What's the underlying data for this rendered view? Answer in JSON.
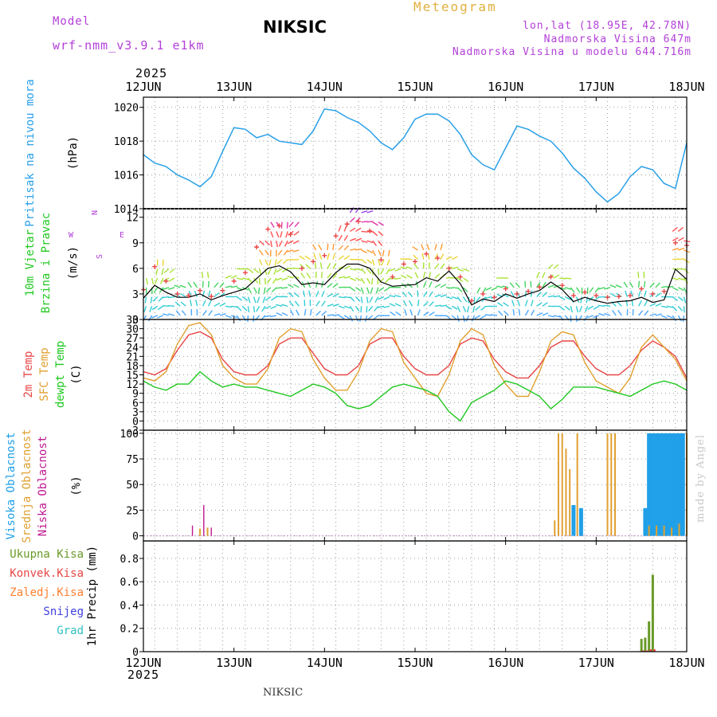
{
  "header": {
    "model_label": "Model",
    "model_run": "wrf-nmm_v3.9.1  e1km",
    "station": "NIKSIC",
    "title": "Meteogram",
    "location": "lon,lat (18.95E, 42.78N)",
    "elevation": "Nadmorska Visina 647m",
    "model_elevation": "Nadmorska Visina u modelu 644.716m",
    "year": "2025"
  },
  "footer": {
    "station": "NIKSIC",
    "credit": "made by Angel"
  },
  "colors": {
    "pressure": "#2aa0e8",
    "temp2m": "#e84545",
    "sfc_temp": "#e0a030",
    "dewpt": "#20c820",
    "high_cloud": "#20a0e8",
    "mid_cloud": "#e0a030",
    "low_cloud": "#c01890",
    "total_precip": "#6a9a28",
    "conv_precip": "#e84545",
    "frozen_precip": "#ff8030",
    "snow": "#4040e0",
    "graupel": "#30c0c0",
    "wind_speed": "#000000",
    "wind_gust": "#e84545",
    "wind_legend": "#b23fd8"
  },
  "chart_data": [
    {
      "type": "line",
      "panel": "pressure",
      "ylabel": [
        "Pritisak na nivou mora",
        "(hPa)"
      ],
      "ylim": [
        1014,
        1020.6
      ],
      "yticks": [
        1014,
        1016,
        1018,
        1020
      ],
      "x_start": "2025-06-12",
      "x_end": "2025-06-18",
      "x_ticks": [
        "12JUN",
        "13JUN",
        "14JUN",
        "15JUN",
        "16JUN",
        "17JUN",
        "18JUN"
      ],
      "grid": true,
      "series": [
        {
          "name": "",
          "x": [
            "2025-06-12T00",
            "2025-06-12T03",
            "2025-06-12T06",
            "2025-06-12T09",
            "2025-06-12T12",
            "2025-06-12T15",
            "2025-06-12T18",
            "2025-06-12T21",
            "2025-06-13T00",
            "2025-06-13T03",
            "2025-06-13T06",
            "2025-06-13T09",
            "2025-06-13T12",
            "2025-06-13T15",
            "2025-06-13T18",
            "2025-06-13T21",
            "2025-06-14T00",
            "2025-06-14T03",
            "2025-06-14T06",
            "2025-06-14T09",
            "2025-06-14T12",
            "2025-06-14T15",
            "2025-06-14T18",
            "2025-06-14T21",
            "2025-06-15T00",
            "2025-06-15T03",
            "2025-06-15T06",
            "2025-06-15T09",
            "2025-06-15T12",
            "2025-06-15T15",
            "2025-06-15T18",
            "2025-06-15T21",
            "2025-06-16T00",
            "2025-06-16T03",
            "2025-06-16T06",
            "2025-06-16T09",
            "2025-06-16T12",
            "2025-06-16T15",
            "2025-06-16T18",
            "2025-06-16T21",
            "2025-06-17T00",
            "2025-06-17T03",
            "2025-06-17T06",
            "2025-06-17T09",
            "2025-06-17T12",
            "2025-06-17T15",
            "2025-06-17T18",
            "2025-06-17T21",
            "2025-06-18T00"
          ],
          "values": [
            1017.2,
            1016.7,
            1016.5,
            1016.0,
            1015.7,
            1015.3,
            1015.9,
            1017.4,
            1018.8,
            1018.7,
            1018.2,
            1018.4,
            1018.0,
            1017.9,
            1017.8,
            1018.6,
            1019.9,
            1019.8,
            1019.4,
            1019.1,
            1018.6,
            1017.9,
            1017.5,
            1018.2,
            1019.3,
            1019.6,
            1019.6,
            1019.2,
            1018.4,
            1017.2,
            1016.6,
            1016.3,
            1017.6,
            1018.9,
            1018.7,
            1018.3,
            1018.0,
            1017.3,
            1016.4,
            1015.8,
            1015.0,
            1014.4,
            1014.9,
            1015.9,
            1016.5,
            1016.3,
            1015.5,
            1015.2,
            1017.9
          ]
        }
      ]
    },
    {
      "type": "line",
      "panel": "wind",
      "ylabel": [
        "10m Vjetar",
        "Brzina i Pravac",
        "(m/s)"
      ],
      "direction_legend": {
        "n": "N",
        "e": "E",
        "w": "W",
        "s": "S"
      },
      "ylim": [
        0,
        13
      ],
      "yticks": [
        0,
        3,
        6,
        9,
        12
      ],
      "x_start": "2025-06-12",
      "x_end": "2025-06-18",
      "grid": true,
      "series": [
        {
          "name": "",
          "x": [
            "2025-06-12T00",
            "2025-06-12T03",
            "2025-06-12T06",
            "2025-06-12T09",
            "2025-06-12T12",
            "2025-06-12T15",
            "2025-06-12T18",
            "2025-06-12T21",
            "2025-06-13T00",
            "2025-06-13T03",
            "2025-06-13T06",
            "2025-06-13T09",
            "2025-06-13T12",
            "2025-06-13T15",
            "2025-06-13T18",
            "2025-06-13T21",
            "2025-06-14T00",
            "2025-06-14T03",
            "2025-06-14T06",
            "2025-06-14T09",
            "2025-06-14T12",
            "2025-06-14T15",
            "2025-06-14T18",
            "2025-06-14T21",
            "2025-06-15T00",
            "2025-06-15T03",
            "2025-06-15T06",
            "2025-06-15T09",
            "2025-06-15T12",
            "2025-06-15T15",
            "2025-06-15T18",
            "2025-06-15T21",
            "2025-06-16T00",
            "2025-06-16T03",
            "2025-06-16T06",
            "2025-06-16T09",
            "2025-06-16T12",
            "2025-06-16T15",
            "2025-06-16T18",
            "2025-06-16T21",
            "2025-06-17T00",
            "2025-06-17T03",
            "2025-06-17T06",
            "2025-06-17T09",
            "2025-06-17T12",
            "2025-06-17T15",
            "2025-06-17T18",
            "2025-06-17T21",
            "2025-06-18T00"
          ],
          "values": [
            2.5,
            4.0,
            3.2,
            2.6,
            2.6,
            3.0,
            2.3,
            2.8,
            3.2,
            3.6,
            4.8,
            6.0,
            6.3,
            5.6,
            4.1,
            4.3,
            4.1,
            5.5,
            6.5,
            6.5,
            6.0,
            4.4,
            3.9,
            4.0,
            4.1,
            4.9,
            4.5,
            5.7,
            4.2,
            1.7,
            2.4,
            2.1,
            3.0,
            2.5,
            3.0,
            3.4,
            4.4,
            3.5,
            2.1,
            2.6,
            2.2,
            1.9,
            2.1,
            2.2,
            2.6,
            2.0,
            2.3,
            5.9,
            4.7
          ]
        },
        {
          "name": "",
          "x": [
            "2025-06-12T00",
            "2025-06-12T03",
            "2025-06-12T06",
            "2025-06-12T09",
            "2025-06-12T12",
            "2025-06-12T15",
            "2025-06-12T18",
            "2025-06-12T21",
            "2025-06-13T00",
            "2025-06-13T03",
            "2025-06-13T06",
            "2025-06-13T09",
            "2025-06-13T12",
            "2025-06-13T15",
            "2025-06-13T18",
            "2025-06-13T21",
            "2025-06-14T00",
            "2025-06-14T03",
            "2025-06-14T06",
            "2025-06-14T09",
            "2025-06-14T12",
            "2025-06-14T15",
            "2025-06-14T18",
            "2025-06-14T21",
            "2025-06-15T00",
            "2025-06-15T03",
            "2025-06-15T06",
            "2025-06-15T09",
            "2025-06-15T12",
            "2025-06-15T15",
            "2025-06-15T18",
            "2025-06-15T21",
            "2025-06-16T00",
            "2025-06-16T03",
            "2025-06-16T06",
            "2025-06-16T09",
            "2025-06-16T12",
            "2025-06-16T15",
            "2025-06-16T18",
            "2025-06-16T21",
            "2025-06-17T00",
            "2025-06-17T03",
            "2025-06-17T06",
            "2025-06-17T09",
            "2025-06-17T12",
            "2025-06-17T15",
            "2025-06-17T18",
            "2025-06-17T21",
            "2025-06-18T00"
          ],
          "values": [
            3.5,
            6.2,
            4.5,
            3.0,
            2.8,
            3.4,
            2.7,
            3.4,
            4.5,
            5.5,
            8.5,
            10.6,
            11.0,
            10.0,
            6.0,
            6.8,
            7.5,
            9.8,
            11.2,
            11.5,
            10.4,
            7.0,
            5.0,
            6.5,
            6.8,
            7.7,
            7.2,
            6.0,
            5.0,
            2.2,
            3.0,
            2.6,
            3.6,
            3.0,
            3.3,
            3.8,
            5.0,
            4.0,
            2.8,
            3.2,
            2.8,
            2.6,
            2.7,
            2.8,
            3.6,
            3.0,
            3.3,
            9.0,
            8.7
          ]
        }
      ]
    },
    {
      "type": "line",
      "panel": "temperature",
      "ylabel": [
        "2m Temp",
        "SFC Temp",
        "dewpt Temp",
        "(C)"
      ],
      "ylim": [
        -3,
        33
      ],
      "yticks": [
        -3,
        0,
        3,
        6,
        9,
        12,
        15,
        18,
        21,
        24,
        27,
        30,
        33
      ],
      "x_start": "2025-06-12",
      "x_end": "2025-06-18",
      "grid": true,
      "series": [
        {
          "name": "2m Temp",
          "x": [
            "2025-06-12T00",
            "2025-06-12T03",
            "2025-06-12T06",
            "2025-06-12T09",
            "2025-06-12T12",
            "2025-06-12T15",
            "2025-06-12T18",
            "2025-06-12T21",
            "2025-06-13T00",
            "2025-06-13T03",
            "2025-06-13T06",
            "2025-06-13T09",
            "2025-06-13T12",
            "2025-06-13T15",
            "2025-06-13T18",
            "2025-06-13T21",
            "2025-06-14T00",
            "2025-06-14T03",
            "2025-06-14T06",
            "2025-06-14T09",
            "2025-06-14T12",
            "2025-06-14T15",
            "2025-06-14T18",
            "2025-06-14T21",
            "2025-06-15T00",
            "2025-06-15T03",
            "2025-06-15T06",
            "2025-06-15T09",
            "2025-06-15T12",
            "2025-06-15T15",
            "2025-06-15T18",
            "2025-06-15T21",
            "2025-06-16T00",
            "2025-06-16T03",
            "2025-06-16T06",
            "2025-06-16T09",
            "2025-06-16T12",
            "2025-06-16T15",
            "2025-06-16T18",
            "2025-06-16T21",
            "2025-06-17T00",
            "2025-06-17T03",
            "2025-06-17T06",
            "2025-06-17T09",
            "2025-06-17T12",
            "2025-06-17T15",
            "2025-06-17T18",
            "2025-06-17T21",
            "2025-06-18T00"
          ],
          "values": [
            16,
            15,
            17,
            23,
            28,
            29,
            27,
            20,
            16,
            15,
            15,
            18,
            25,
            27,
            27,
            22,
            17,
            15,
            15,
            18,
            25,
            27,
            27,
            21,
            17,
            15,
            15,
            18,
            25,
            27,
            26,
            20,
            16,
            14,
            14,
            18,
            24,
            26,
            26,
            21,
            17,
            15,
            15,
            18,
            23,
            26,
            24,
            21,
            14
          ]
        },
        {
          "name": "SFC Temp",
          "x": [
            "2025-06-12T00",
            "2025-06-12T03",
            "2025-06-12T06",
            "2025-06-12T09",
            "2025-06-12T12",
            "2025-06-12T15",
            "2025-06-12T18",
            "2025-06-12T21",
            "2025-06-13T00",
            "2025-06-13T03",
            "2025-06-13T06",
            "2025-06-13T09",
            "2025-06-13T12",
            "2025-06-13T15",
            "2025-06-13T18",
            "2025-06-13T21",
            "2025-06-14T00",
            "2025-06-14T03",
            "2025-06-14T06",
            "2025-06-14T09",
            "2025-06-14T12",
            "2025-06-14T15",
            "2025-06-14T18",
            "2025-06-14T21",
            "2025-06-15T00",
            "2025-06-15T03",
            "2025-06-15T06",
            "2025-06-15T09",
            "2025-06-15T12",
            "2025-06-15T15",
            "2025-06-15T18",
            "2025-06-15T21",
            "2025-06-16T00",
            "2025-06-16T03",
            "2025-06-16T06",
            "2025-06-16T09",
            "2025-06-16T12",
            "2025-06-16T15",
            "2025-06-16T18",
            "2025-06-16T21",
            "2025-06-17T00",
            "2025-06-17T03",
            "2025-06-17T06",
            "2025-06-17T09",
            "2025-06-17T12",
            "2025-06-17T15",
            "2025-06-17T18",
            "2025-06-17T21",
            "2025-06-18T00"
          ],
          "values": [
            14,
            13,
            16,
            25,
            31,
            32,
            28,
            18,
            14,
            12,
            12,
            17,
            27,
            30,
            29,
            20,
            14,
            10,
            10,
            16,
            26,
            30,
            29,
            19,
            14,
            9,
            8,
            15,
            26,
            30,
            28,
            18,
            12,
            8,
            8,
            16,
            26,
            29,
            28,
            19,
            13,
            11,
            9,
            14,
            24,
            28,
            24,
            20,
            13
          ]
        },
        {
          "name": "dewpt Temp",
          "x": [
            "2025-06-12T00",
            "2025-06-12T03",
            "2025-06-12T06",
            "2025-06-12T09",
            "2025-06-12T12",
            "2025-06-12T15",
            "2025-06-12T18",
            "2025-06-12T21",
            "2025-06-13T00",
            "2025-06-13T03",
            "2025-06-13T06",
            "2025-06-13T09",
            "2025-06-13T12",
            "2025-06-13T15",
            "2025-06-13T18",
            "2025-06-13T21",
            "2025-06-14T00",
            "2025-06-14T03",
            "2025-06-14T06",
            "2025-06-14T09",
            "2025-06-14T12",
            "2025-06-14T15",
            "2025-06-14T18",
            "2025-06-14T21",
            "2025-06-15T00",
            "2025-06-15T03",
            "2025-06-15T06",
            "2025-06-15T09",
            "2025-06-15T12",
            "2025-06-15T15",
            "2025-06-15T18",
            "2025-06-15T21",
            "2025-06-16T00",
            "2025-06-16T03",
            "2025-06-16T06",
            "2025-06-16T09",
            "2025-06-16T12",
            "2025-06-16T15",
            "2025-06-16T18",
            "2025-06-16T21",
            "2025-06-17T00",
            "2025-06-17T03",
            "2025-06-17T06",
            "2025-06-17T09",
            "2025-06-17T12",
            "2025-06-17T15",
            "2025-06-17T18",
            "2025-06-17T21",
            "2025-06-18T00"
          ],
          "values": [
            13,
            11,
            10,
            12,
            12,
            16,
            13,
            11,
            12,
            11,
            11,
            10,
            9,
            8,
            10,
            12,
            11,
            9,
            5,
            4,
            5,
            8,
            11,
            12,
            11,
            10,
            8,
            3,
            0,
            6,
            8,
            10,
            13,
            12,
            10,
            8,
            4,
            7,
            11,
            11,
            11,
            10,
            9,
            8,
            10,
            12,
            13,
            12,
            10
          ]
        }
      ]
    },
    {
      "type": "bar",
      "panel": "clouds",
      "ylabel": [
        "Visoka Oblacnost",
        "Srednja Oblacnost",
        "Niska Oblacnost",
        "(%)"
      ],
      "ylim": [
        -5,
        103
      ],
      "yticks": [
        0,
        25,
        50,
        75,
        100
      ],
      "x_start": "2025-06-12",
      "x_end": "2025-06-18",
      "grid": true,
      "series": [
        {
          "name": "Visoka Oblacnost",
          "x": [
            "2025-06-16T18",
            "2025-06-16T20",
            "2025-06-17T13",
            "2025-06-17T14",
            "2025-06-17T15",
            "2025-06-17T16",
            "2025-06-17T17",
            "2025-06-17T18",
            "2025-06-17T19",
            "2025-06-17T20",
            "2025-06-17T21",
            "2025-06-17T22",
            "2025-06-17T23"
          ],
          "values": [
            30,
            27,
            27,
            100,
            100,
            100,
            100,
            100,
            100,
            100,
            100,
            100,
            100
          ]
        },
        {
          "name": "Srednja Oblacnost",
          "x": [
            "2025-06-12T15",
            "2025-06-12T17",
            "2025-06-16T13",
            "2025-06-16T14",
            "2025-06-16T15",
            "2025-06-16T16",
            "2025-06-16T17",
            "2025-06-16T19",
            "2025-06-17T03",
            "2025-06-17T04",
            "2025-06-17T05",
            "2025-06-17T14",
            "2025-06-17T16",
            "2025-06-17T18",
            "2025-06-17T20",
            "2025-06-17T22",
            "2025-06-18T00"
          ],
          "values": [
            7,
            8,
            15,
            100,
            100,
            85,
            65,
            100,
            100,
            100,
            100,
            10,
            10,
            10,
            8,
            12,
            100
          ]
        },
        {
          "name": "Niska Oblacnost",
          "x": [
            "2025-06-12T13",
            "2025-06-12T16",
            "2025-06-12T18"
          ],
          "values": [
            10,
            30,
            8
          ]
        }
      ]
    },
    {
      "type": "bar",
      "panel": "precip",
      "ylabel": [
        "1hr Precip (mm)"
      ],
      "legend": [
        "Ukupna Kisa",
        "Konvek.Kisa",
        "Zaledj.Kisa",
        "Snijeg",
        "Grad"
      ],
      "ylim": [
        0,
        0.95
      ],
      "yticks": [
        0,
        0.2,
        0.4,
        0.6,
        0.8
      ],
      "x_start": "2025-06-12",
      "x_end": "2025-06-18",
      "grid": true,
      "series": [
        {
          "name": "Ukupna Kisa",
          "x": [
            "2025-06-17T12",
            "2025-06-17T13",
            "2025-06-17T14",
            "2025-06-17T15"
          ],
          "values": [
            0.11,
            0.12,
            0.26,
            0.66
          ]
        },
        {
          "name": "Konvek.Kisa",
          "x": [
            "2025-06-17T12",
            "2025-06-17T13",
            "2025-06-17T14",
            "2025-06-17T15"
          ],
          "values": [
            0.01,
            0.01,
            0.02,
            0.02
          ]
        }
      ]
    }
  ]
}
